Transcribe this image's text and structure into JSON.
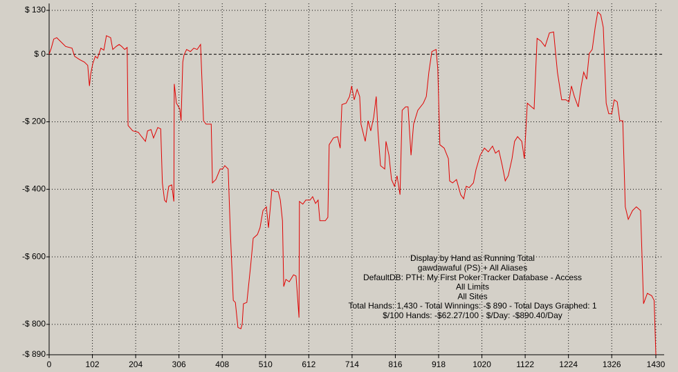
{
  "chart_data": {
    "type": "line",
    "annotations": [
      "Display by Hand as Running Total",
      "gawdawaful (PS) + All Aliases",
      "DefaultDB: PTH: My First Poker Tracker Database - Access",
      "All Limits",
      "All Sites",
      "Total Hands: 1,430 - Total Winnings: -$ 890 - Total Days Graphed: 1",
      "$/100 Hands: -$62.27/100 - $/Day: -$890.40/Day"
    ],
    "color": "#e00000",
    "grid": true,
    "xlim": [
      0,
      1430
    ],
    "xticks": [
      0,
      102,
      204,
      306,
      408,
      510,
      612,
      714,
      816,
      918,
      1020,
      1122,
      1224,
      1326,
      1430
    ],
    "ylim": [
      -890,
      130
    ],
    "yticks": [
      {
        "value": 130,
        "label": "$ 130"
      },
      {
        "value": 0,
        "label": "$ 0"
      },
      {
        "value": -200,
        "label": "-$ 200"
      },
      {
        "value": -400,
        "label": "-$ 400"
      },
      {
        "value": -600,
        "label": "-$ 600"
      },
      {
        "value": -800,
        "label": "-$ 800"
      },
      {
        "value": -890,
        "label": "-$ 890"
      }
    ],
    "x": [
      0,
      5,
      11,
      18,
      31,
      39,
      54,
      60,
      72,
      83,
      91,
      95,
      98,
      103,
      109,
      114,
      122,
      129,
      135,
      145,
      150,
      158,
      165,
      171,
      178,
      184,
      186,
      197,
      210,
      218,
      227,
      232,
      240,
      246,
      256,
      263,
      267,
      272,
      276,
      282,
      289,
      294,
      295,
      300,
      308,
      311,
      315,
      318,
      324,
      333,
      341,
      349,
      357,
      364,
      370,
      382,
      385,
      393,
      403,
      409,
      414,
      422,
      427,
      434,
      439,
      445,
      452,
      455,
      458,
      466,
      475,
      481,
      491,
      497,
      504,
      512,
      517,
      525,
      533,
      540,
      545,
      550,
      553,
      558,
      566,
      576,
      582,
      589,
      590,
      598,
      605,
      615,
      621,
      628,
      634,
      638,
      651,
      657,
      660,
      670,
      680,
      686,
      690,
      700,
      708,
      713,
      719,
      726,
      732,
      735,
      745,
      752,
      758,
      765,
      771,
      775,
      781,
      791,
      794,
      801,
      807,
      814,
      820,
      827,
      832,
      840,
      846,
      853,
      859,
      869,
      882,
      889,
      895,
      902,
      912,
      916,
      921,
      931,
      941,
      944,
      951,
      960,
      970,
      977,
      983,
      990,
      1000,
      1006,
      1016,
      1026,
      1035,
      1045,
      1052,
      1060,
      1068,
      1075,
      1082,
      1091,
      1097,
      1104,
      1114,
      1120,
      1127,
      1137,
      1143,
      1150,
      1159,
      1169,
      1179,
      1189,
      1198,
      1208,
      1218,
      1225,
      1231,
      1238,
      1247,
      1254,
      1260,
      1267,
      1273,
      1280,
      1287,
      1293,
      1300,
      1306,
      1313,
      1319,
      1326,
      1332,
      1339,
      1345,
      1352,
      1358,
      1365,
      1375,
      1384,
      1394,
      1401,
      1410,
      1420,
      1426,
      1430
    ],
    "values": [
      0,
      18,
      45,
      49,
      33,
      23,
      18,
      -6,
      -16,
      -23,
      -33,
      -94,
      -59,
      -27,
      -6,
      -12,
      18,
      12,
      55,
      49,
      14,
      23,
      29,
      23,
      14,
      20,
      -211,
      -227,
      -231,
      -244,
      -258,
      -227,
      -223,
      -248,
      -217,
      -221,
      -381,
      -432,
      -438,
      -391,
      -387,
      -436,
      -88,
      -145,
      -162,
      -197,
      -23,
      -2,
      14,
      8,
      18,
      14,
      29,
      -197,
      -207,
      -207,
      -381,
      -371,
      -340,
      -340,
      -330,
      -340,
      -524,
      -729,
      -735,
      -809,
      -813,
      -800,
      -739,
      -735,
      -626,
      -545,
      -534,
      -514,
      -463,
      -452,
      -514,
      -401,
      -407,
      -407,
      -432,
      -493,
      -688,
      -667,
      -674,
      -653,
      -657,
      -780,
      -436,
      -444,
      -432,
      -432,
      -422,
      -442,
      -432,
      -493,
      -493,
      -483,
      -268,
      -248,
      -244,
      -278,
      -149,
      -145,
      -125,
      -94,
      -135,
      -104,
      -125,
      -207,
      -258,
      -197,
      -227,
      -186,
      -125,
      -227,
      -330,
      -340,
      -258,
      -299,
      -371,
      -391,
      -360,
      -416,
      -166,
      -156,
      -156,
      -299,
      -207,
      -166,
      -145,
      -125,
      -53,
      8,
      14,
      -43,
      -268,
      -278,
      -309,
      -375,
      -381,
      -371,
      -416,
      -428,
      -391,
      -395,
      -381,
      -342,
      -299,
      -278,
      -289,
      -272,
      -293,
      -285,
      -330,
      -375,
      -360,
      -309,
      -258,
      -244,
      -258,
      -309,
      -145,
      -156,
      -162,
      47,
      39,
      23,
      63,
      66,
      -53,
      -135,
      -135,
      -141,
      -94,
      -125,
      -156,
      -94,
      -53,
      -74,
      2,
      14,
      80,
      125,
      117,
      80,
      -145,
      -176,
      -176,
      -135,
      -141,
      -197,
      -197,
      -452,
      -489,
      -463,
      -452,
      -463,
      -739,
      -708,
      -715,
      -729,
      -890
    ]
  }
}
